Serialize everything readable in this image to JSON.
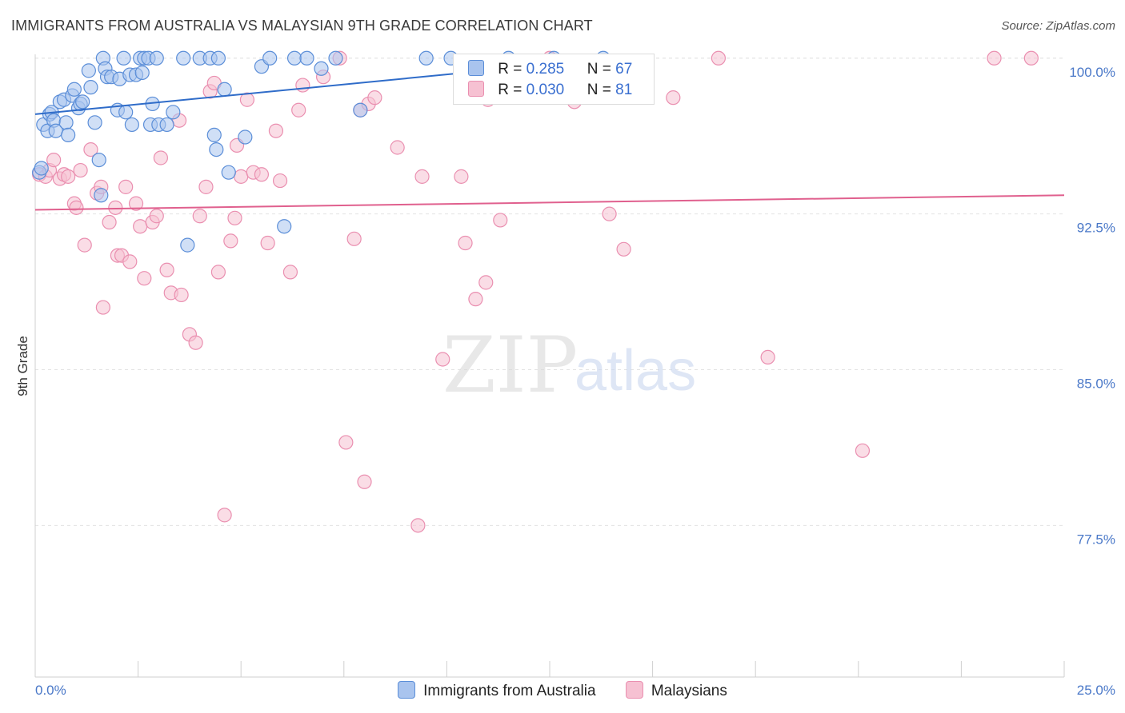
{
  "title": "IMMIGRANTS FROM AUSTRALIA VS MALAYSIAN 9TH GRADE CORRELATION CHART",
  "source": "Source: ZipAtlas.com",
  "watermark": {
    "zip": "ZIP",
    "atlas": "atlas"
  },
  "legend": {
    "series1": {
      "r_label": "R =",
      "r_value": "0.285",
      "n_label": "N =",
      "n_value": "67"
    },
    "series2": {
      "r_label": "R =",
      "r_value": "0.030",
      "n_label": "N =",
      "n_value": "81"
    }
  },
  "bottom_legend": {
    "series1": "Immigrants from Australia",
    "series2": "Malaysians"
  },
  "colors": {
    "blue_fill": "#a9c4ee",
    "blue_stroke": "#5b8ed8",
    "blue_line": "#2f6cc9",
    "pink_fill": "#f6c1d2",
    "pink_stroke": "#ea8fb0",
    "pink_line": "#e0608e",
    "tick_text": "#4a78c8",
    "grid": "#e3e3e3"
  },
  "chart_data": {
    "type": "scatter",
    "title": "IMMIGRANTS FROM AUSTRALIA VS MALAYSIAN 9TH GRADE CORRELATION CHART",
    "xlabel": "",
    "ylabel": "9th Grade",
    "xlim": [
      0,
      25
    ],
    "ylim": [
      70.2,
      100.8
    ],
    "x_tick_labels": [
      "0.0%",
      "25.0%"
    ],
    "y_ticks": [
      100.0,
      92.5,
      85.0,
      77.5
    ],
    "y_tick_labels": [
      "100.0%",
      "92.5%",
      "85.0%",
      "77.5%"
    ],
    "grid": true,
    "series": [
      {
        "name": "Immigrants from Australia",
        "r": 0.285,
        "n": 67,
        "trend": {
          "x": [
            0.0,
            14.1
          ],
          "y": [
            97.3,
            100.0
          ]
        },
        "points": [
          [
            0.1,
            94.5
          ],
          [
            0.15,
            94.7
          ],
          [
            0.2,
            96.8
          ],
          [
            0.3,
            96.5
          ],
          [
            0.35,
            97.3
          ],
          [
            0.4,
            97.4
          ],
          [
            0.45,
            97.0
          ],
          [
            0.5,
            96.5
          ],
          [
            0.6,
            97.9
          ],
          [
            0.7,
            98.0
          ],
          [
            0.75,
            96.9
          ],
          [
            0.8,
            96.3
          ],
          [
            0.9,
            98.2
          ],
          [
            0.95,
            98.5
          ],
          [
            1.05,
            97.6
          ],
          [
            1.1,
            97.8
          ],
          [
            1.15,
            97.9
          ],
          [
            1.3,
            99.4
          ],
          [
            1.35,
            98.6
          ],
          [
            1.45,
            96.9
          ],
          [
            1.55,
            95.1
          ],
          [
            1.6,
            93.4
          ],
          [
            1.65,
            100.0
          ],
          [
            1.7,
            99.5
          ],
          [
            1.75,
            99.1
          ],
          [
            1.85,
            99.1
          ],
          [
            2.0,
            97.5
          ],
          [
            2.05,
            99.0
          ],
          [
            2.15,
            100.0
          ],
          [
            2.2,
            97.4
          ],
          [
            2.3,
            99.2
          ],
          [
            2.35,
            96.8
          ],
          [
            2.45,
            99.2
          ],
          [
            2.55,
            100.0
          ],
          [
            2.6,
            99.3
          ],
          [
            2.65,
            100.0
          ],
          [
            2.75,
            100.0
          ],
          [
            2.8,
            96.8
          ],
          [
            2.85,
            97.8
          ],
          [
            2.95,
            100.0
          ],
          [
            3.0,
            96.8
          ],
          [
            3.2,
            96.8
          ],
          [
            3.35,
            97.4
          ],
          [
            3.6,
            100.0
          ],
          [
            3.7,
            91.0
          ],
          [
            4.0,
            100.0
          ],
          [
            4.25,
            100.0
          ],
          [
            4.35,
            96.3
          ],
          [
            4.4,
            95.6
          ],
          [
            4.45,
            100.0
          ],
          [
            4.6,
            98.5
          ],
          [
            4.7,
            94.5
          ],
          [
            5.1,
            96.2
          ],
          [
            5.5,
            99.6
          ],
          [
            5.7,
            100.0
          ],
          [
            6.05,
            91.9
          ],
          [
            6.3,
            100.0
          ],
          [
            6.6,
            100.0
          ],
          [
            6.95,
            99.5
          ],
          [
            7.3,
            100.0
          ],
          [
            7.9,
            97.5
          ],
          [
            9.5,
            100.0
          ],
          [
            10.1,
            100.0
          ],
          [
            10.7,
            99.4
          ],
          [
            11.5,
            100.0
          ],
          [
            12.6,
            100.0
          ],
          [
            13.8,
            100.0
          ]
        ]
      },
      {
        "name": "Malaysians",
        "r": 0.03,
        "n": 81,
        "trend": {
          "x": [
            0.0,
            25.0
          ],
          "y": [
            92.7,
            93.4
          ]
        },
        "points": [
          [
            0.1,
            94.4
          ],
          [
            0.25,
            94.3
          ],
          [
            0.35,
            94.6
          ],
          [
            0.45,
            95.1
          ],
          [
            0.6,
            94.2
          ],
          [
            0.7,
            94.4
          ],
          [
            0.8,
            94.3
          ],
          [
            0.95,
            93.0
          ],
          [
            1.0,
            92.8
          ],
          [
            1.1,
            94.6
          ],
          [
            1.2,
            91.0
          ],
          [
            1.35,
            95.6
          ],
          [
            1.5,
            93.5
          ],
          [
            1.6,
            93.8
          ],
          [
            1.65,
            88.0
          ],
          [
            1.8,
            92.1
          ],
          [
            1.95,
            92.8
          ],
          [
            2.0,
            90.5
          ],
          [
            2.1,
            90.5
          ],
          [
            2.2,
            93.8
          ],
          [
            2.3,
            90.2
          ],
          [
            2.45,
            93.0
          ],
          [
            2.55,
            91.9
          ],
          [
            2.65,
            89.4
          ],
          [
            2.85,
            92.1
          ],
          [
            2.95,
            92.4
          ],
          [
            3.05,
            95.2
          ],
          [
            3.2,
            89.8
          ],
          [
            3.3,
            88.7
          ],
          [
            3.5,
            97.0
          ],
          [
            3.55,
            88.6
          ],
          [
            3.75,
            86.7
          ],
          [
            3.9,
            86.3
          ],
          [
            4.0,
            92.4
          ],
          [
            4.15,
            93.8
          ],
          [
            4.25,
            98.4
          ],
          [
            4.35,
            98.8
          ],
          [
            4.45,
            89.7
          ],
          [
            4.6,
            78.0
          ],
          [
            4.75,
            91.2
          ],
          [
            4.85,
            92.3
          ],
          [
            4.9,
            95.8
          ],
          [
            5.0,
            94.3
          ],
          [
            5.15,
            98.0
          ],
          [
            5.3,
            94.5
          ],
          [
            5.5,
            94.4
          ],
          [
            5.65,
            91.1
          ],
          [
            5.85,
            96.5
          ],
          [
            5.95,
            94.1
          ],
          [
            6.2,
            89.7
          ],
          [
            6.4,
            97.5
          ],
          [
            6.5,
            98.7
          ],
          [
            7.0,
            99.1
          ],
          [
            7.4,
            100.0
          ],
          [
            7.55,
            81.5
          ],
          [
            7.75,
            91.3
          ],
          [
            7.9,
            97.5
          ],
          [
            8.0,
            79.6
          ],
          [
            8.1,
            97.8
          ],
          [
            8.25,
            98.1
          ],
          [
            8.8,
            95.7
          ],
          [
            9.3,
            77.5
          ],
          [
            9.4,
            94.3
          ],
          [
            9.9,
            85.5
          ],
          [
            10.35,
            94.3
          ],
          [
            10.45,
            91.1
          ],
          [
            10.7,
            88.4
          ],
          [
            10.95,
            89.2
          ],
          [
            11.0,
            98.0
          ],
          [
            11.3,
            92.2
          ],
          [
            12.5,
            100.0
          ],
          [
            13.1,
            97.9
          ],
          [
            13.5,
            99.8
          ],
          [
            13.95,
            92.5
          ],
          [
            14.3,
            90.8
          ],
          [
            15.5,
            98.1
          ],
          [
            16.6,
            100.0
          ],
          [
            17.8,
            85.6
          ],
          [
            20.1,
            81.1
          ],
          [
            23.3,
            100.0
          ],
          [
            24.2,
            100.0
          ]
        ]
      }
    ]
  }
}
